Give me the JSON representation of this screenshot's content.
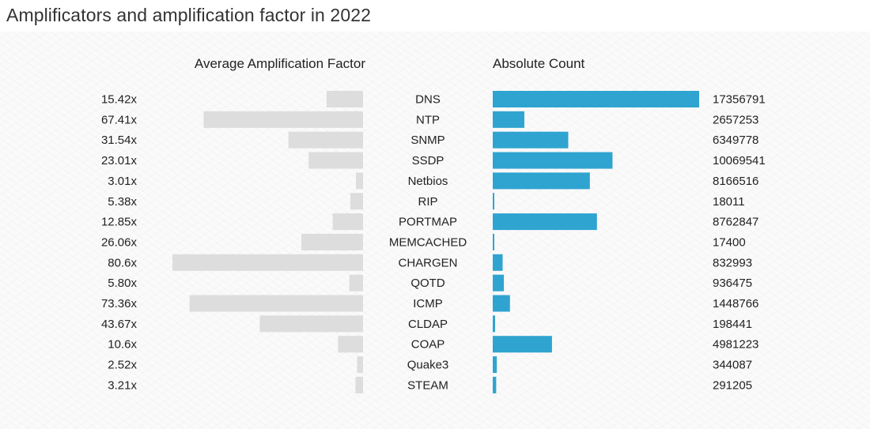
{
  "title": "Amplificators and amplification factor in 2022",
  "chart_data": {
    "type": "bar",
    "title": "Amplificators and amplification factor in 2022",
    "categories": [
      "DNS",
      "NTP",
      "SNMP",
      "SSDP",
      "Netbios",
      "RIP",
      "PORTMAP",
      "MEMCACHED",
      "CHARGEN",
      "QOTD",
      "ICMP",
      "CLDAP",
      "COAP",
      "Quake3",
      "STEAM"
    ],
    "series": [
      {
        "name": "Average Amplification Factor",
        "values": [
          15.42,
          67.41,
          31.54,
          23.01,
          3.01,
          5.38,
          12.85,
          26.06,
          80.6,
          5.8,
          73.36,
          43.67,
          10.6,
          2.52,
          3.21
        ],
        "labels": [
          "15.42x",
          "67.41x",
          "31.54x",
          "23.01x",
          "3.01x",
          "5.38x",
          "12.85x",
          "26.06x",
          "80.6x",
          "5.80x",
          "73.36x",
          "43.67x",
          "10.6x",
          "2.52x",
          "3.21x"
        ],
        "color": "#dddddd",
        "xlim": [
          0,
          80.6
        ]
      },
      {
        "name": "Absolute Count",
        "values": [
          17356791,
          2657253,
          6349778,
          10069541,
          8166516,
          18011,
          8762847,
          17400,
          832993,
          936475,
          1448766,
          198441,
          4981223,
          344087,
          291205
        ],
        "labels": [
          "17356791",
          "2657253",
          "6349778",
          "10069541",
          "8166516",
          "18011",
          "8762847",
          "17400",
          "832993",
          "936475",
          "1448766",
          "198441",
          "4981223",
          "344087",
          "291205"
        ],
        "color": "#2fa4d0",
        "xlim": [
          0,
          17356791
        ]
      }
    ],
    "grid": false
  }
}
